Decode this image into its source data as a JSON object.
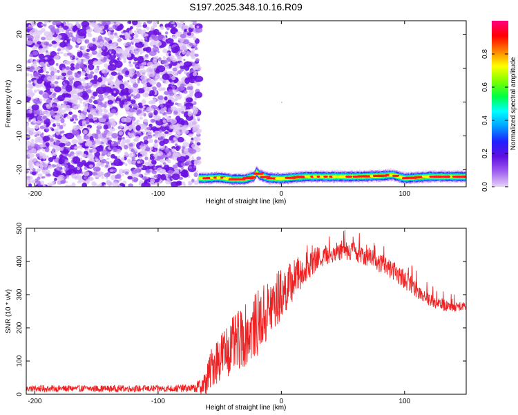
{
  "title": "S197.2025.348.10.16.R09",
  "chart_data": [
    {
      "type": "heatmap",
      "xlabel": "Height of straight line (km)",
      "ylabel": "Frequency (Hz)",
      "xlim": [
        -207,
        150
      ],
      "ylim": [
        -25,
        24
      ],
      "x_ticks": [
        -200,
        -100,
        0,
        100
      ],
      "y_ticks": [
        -20,
        -10,
        0,
        10,
        20
      ],
      "noise_region_x": [
        -207,
        -67
      ],
      "signal_track": {
        "x": [
          -67,
          -60,
          -50,
          -40,
          -30,
          -22,
          -20,
          -18,
          -10,
          0,
          20,
          40,
          60,
          80,
          90,
          100,
          120,
          150
        ],
        "freq": [
          -22.5,
          -22.5,
          -22.3,
          -22.8,
          -22.8,
          -22.0,
          -20.5,
          -21.5,
          -22.5,
          -22.6,
          -22.0,
          -22.0,
          -22.0,
          -21.8,
          -21.5,
          -22.5,
          -22.0,
          -22.0
        ]
      },
      "colorbar": {
        "label": "Normalized spectral amplitude",
        "range": [
          0,
          1
        ],
        "ticks": [
          "0.0",
          "0.2",
          "0.4",
          "0.6",
          "0.8"
        ],
        "colors": [
          "#e6d2f5",
          "#a060f0",
          "#6010e0",
          "#2020ff",
          "#00a0ff",
          "#00ffff",
          "#00ff40",
          "#80ff00",
          "#ffff00",
          "#ff8000",
          "#ff0000",
          "#ff0080"
        ]
      }
    },
    {
      "type": "line",
      "xlabel": "Height of straight line (km)",
      "ylabel": "SNR (10 * v/v)",
      "xlim": [
        -207,
        150
      ],
      "ylim": [
        0,
        500
      ],
      "x_ticks": [
        -200,
        -100,
        0,
        100
      ],
      "y_ticks": [
        0,
        100,
        200,
        300,
        400,
        500
      ],
      "series": [
        {
          "color": "#ee2222",
          "envelope_x": [
            -207,
            -150,
            -100,
            -70,
            -62,
            -55,
            -45,
            -35,
            -25,
            -15,
            -8,
            0,
            10,
            20,
            30,
            40,
            50,
            60,
            70,
            80,
            90,
            100,
            110,
            120,
            130,
            140,
            150
          ],
          "envelope_mean": [
            17,
            17,
            17,
            18,
            30,
            95,
            130,
            160,
            190,
            230,
            265,
            300,
            345,
            385,
            410,
            425,
            435,
            430,
            415,
            395,
            375,
            345,
            315,
            285,
            268,
            262,
            268
          ],
          "envelope_spread": [
            10,
            10,
            10,
            12,
            40,
            70,
            80,
            90,
            95,
            100,
            95,
            80,
            60,
            45,
            35,
            30,
            30,
            30,
            30,
            30,
            28,
            28,
            25,
            20,
            18,
            15,
            15
          ]
        }
      ]
    }
  ]
}
